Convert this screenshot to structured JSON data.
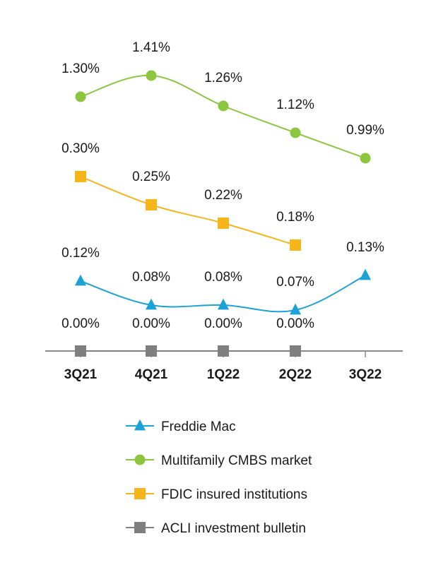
{
  "chart_data": {
    "type": "line",
    "title": "",
    "xlabel": "",
    "ylabel": "",
    "categories": [
      "3Q21",
      "4Q21",
      "1Q22",
      "2Q22",
      "3Q22"
    ],
    "series": [
      {
        "name": "Freddie Mac",
        "color": "#1ba3d8",
        "marker": "triangle",
        "values": [
          0.12,
          0.08,
          0.08,
          0.07,
          0.13
        ],
        "labels": [
          "0.12%",
          "0.08%",
          "0.08%",
          "0.07%",
          "0.13%"
        ]
      },
      {
        "name": "Multifamily CMBS market",
        "color": "#8cc63f",
        "marker": "circle",
        "values": [
          1.3,
          1.41,
          1.26,
          1.12,
          0.99
        ],
        "labels": [
          "1.30%",
          "1.41%",
          "1.26%",
          "1.12%",
          "0.99%"
        ]
      },
      {
        "name": "FDIC insured institutions",
        "color": "#f7b51c",
        "marker": "square",
        "values": [
          0.3,
          0.25,
          0.22,
          0.18,
          null
        ],
        "labels": [
          "0.30%",
          "0.25%",
          "0.22%",
          "0.18%",
          ""
        ]
      },
      {
        "name": "ACLI investment bulletin",
        "color": "#7f7f7f",
        "marker": "square",
        "values": [
          0.0,
          0.0,
          0.0,
          0.0,
          null
        ],
        "labels": [
          "0.00%",
          "0.00%",
          "0.00%",
          "0.00%",
          ""
        ]
      }
    ],
    "legend_position": "bottom",
    "grid": false
  }
}
